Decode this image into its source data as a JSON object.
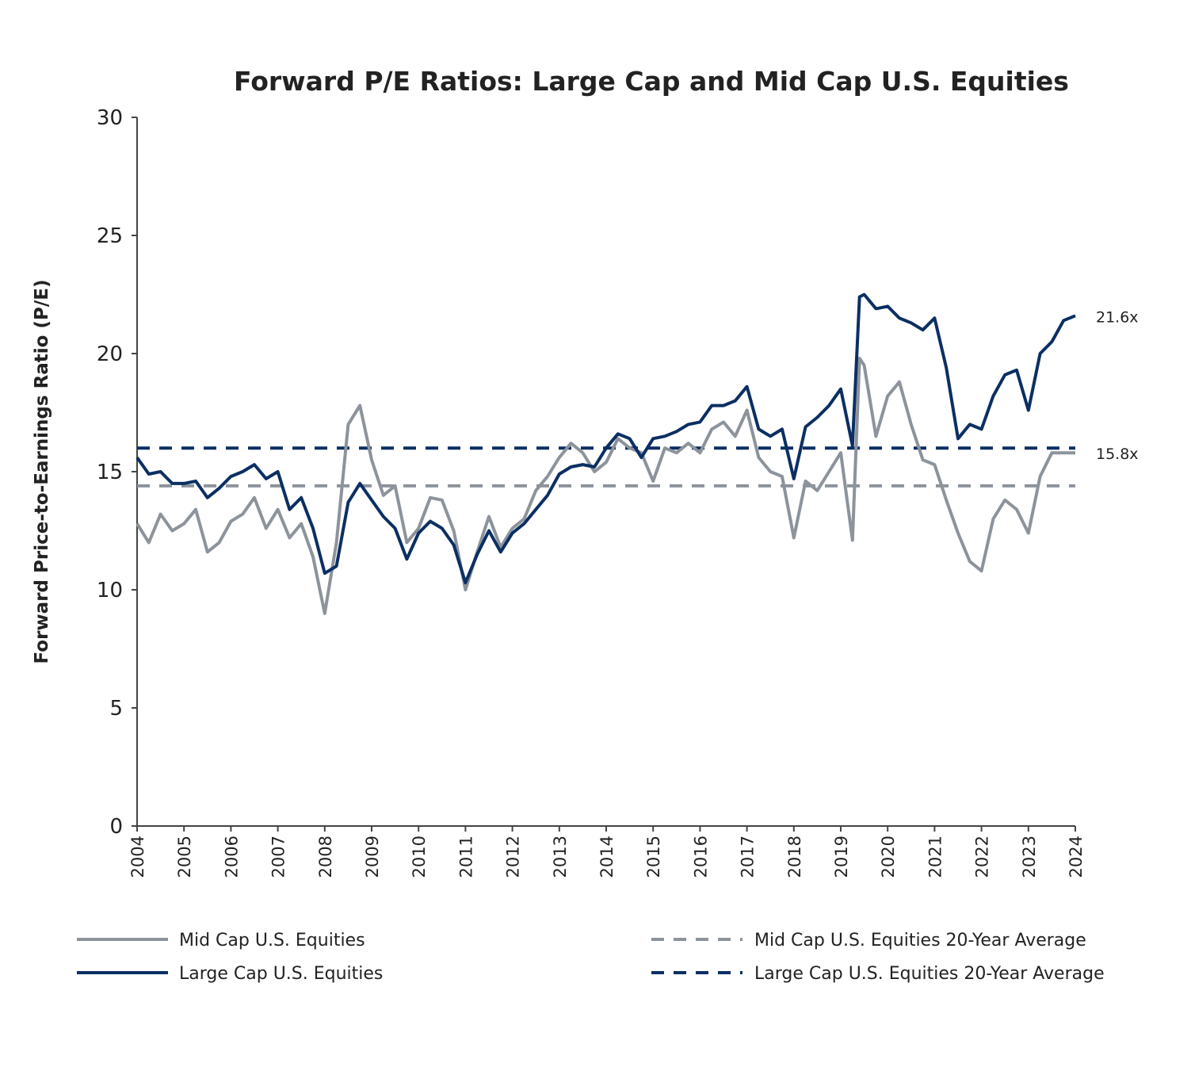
{
  "chart_data": {
    "type": "line",
    "title": "Forward P/E Ratios: Large Cap and Mid Cap U.S. Equities",
    "xlabel": "",
    "ylabel": "Forward Price-to-Earnings Ratio (P/E)",
    "ylim": [
      0,
      30
    ],
    "xlim": [
      2004,
      2024
    ],
    "yticks": [
      "0",
      "5",
      "10",
      "15",
      "20",
      "25",
      "30"
    ],
    "xticks": [
      "2004",
      "2005",
      "2006",
      "2007",
      "2008",
      "2009",
      "2010",
      "2011",
      "2012",
      "2013",
      "2014",
      "2015",
      "2016",
      "2017",
      "2018",
      "2019",
      "2020",
      "2021",
      "2022",
      "2023",
      "2024"
    ],
    "grid": false,
    "legend_position": "bottom",
    "colors": {
      "large": "#0b2f63",
      "mid": "#8c939b"
    },
    "series": [
      {
        "name": "Mid Cap U.S. Equities",
        "style": "solid",
        "color": "#8c939b",
        "x": [
          2004.0,
          2004.25,
          2004.5,
          2004.75,
          2005.0,
          2005.25,
          2005.5,
          2005.75,
          2006.0,
          2006.25,
          2006.5,
          2006.75,
          2007.0,
          2007.25,
          2007.5,
          2007.75,
          2008.0,
          2008.25,
          2008.5,
          2008.75,
          2009.0,
          2009.25,
          2009.5,
          2009.75,
          2010.0,
          2010.25,
          2010.5,
          2010.75,
          2011.0,
          2011.25,
          2011.5,
          2011.75,
          2012.0,
          2012.25,
          2012.5,
          2012.75,
          2013.0,
          2013.25,
          2013.5,
          2013.75,
          2014.0,
          2014.25,
          2014.5,
          2014.75,
          2015.0,
          2015.25,
          2015.5,
          2015.75,
          2016.0,
          2016.25,
          2016.5,
          2016.75,
          2017.0,
          2017.25,
          2017.5,
          2017.75,
          2018.0,
          2018.25,
          2018.5,
          2018.75,
          2019.0,
          2019.25,
          2019.4,
          2019.5,
          2019.75,
          2020.0,
          2020.25,
          2020.5,
          2020.75,
          2021.0,
          2021.25,
          2021.5,
          2021.75,
          2022.0,
          2022.25,
          2022.5,
          2022.75,
          2023.0,
          2023.25,
          2023.5,
          2023.75,
          2024.0
        ],
        "values": [
          12.8,
          12.0,
          13.2,
          12.5,
          12.8,
          13.4,
          11.6,
          12.0,
          12.9,
          13.2,
          13.9,
          12.6,
          13.4,
          12.2,
          12.8,
          11.4,
          9.0,
          12.0,
          17.0,
          17.8,
          15.5,
          14.0,
          14.4,
          12.0,
          12.6,
          13.9,
          13.8,
          12.5,
          10.0,
          11.6,
          13.1,
          11.8,
          12.6,
          13.0,
          14.2,
          14.8,
          15.6,
          16.2,
          15.8,
          15.0,
          15.4,
          16.4,
          16.0,
          15.8,
          14.6,
          16.0,
          15.8,
          16.2,
          15.8,
          16.8,
          17.1,
          16.5,
          17.6,
          15.6,
          15.0,
          14.8,
          12.2,
          14.6,
          14.2,
          15.0,
          15.8,
          12.1,
          19.8,
          19.5,
          16.5,
          18.2,
          18.8,
          17.0,
          15.5,
          15.3,
          13.8,
          12.4,
          11.2,
          10.8,
          13.0,
          13.8,
          13.4,
          12.4,
          14.8,
          15.8,
          15.8,
          15.8
        ]
      },
      {
        "name": "Large Cap U.S. Equities",
        "style": "solid",
        "color": "#0b2f63",
        "x": [
          2004.0,
          2004.25,
          2004.5,
          2004.75,
          2005.0,
          2005.25,
          2005.5,
          2005.75,
          2006.0,
          2006.25,
          2006.5,
          2006.75,
          2007.0,
          2007.25,
          2007.5,
          2007.75,
          2008.0,
          2008.25,
          2008.5,
          2008.75,
          2009.0,
          2009.25,
          2009.5,
          2009.75,
          2010.0,
          2010.25,
          2010.5,
          2010.75,
          2011.0,
          2011.25,
          2011.5,
          2011.75,
          2012.0,
          2012.25,
          2012.5,
          2012.75,
          2013.0,
          2013.25,
          2013.5,
          2013.75,
          2014.0,
          2014.25,
          2014.5,
          2014.75,
          2015.0,
          2015.25,
          2015.5,
          2015.75,
          2016.0,
          2016.25,
          2016.5,
          2016.75,
          2017.0,
          2017.25,
          2017.5,
          2017.75,
          2018.0,
          2018.25,
          2018.5,
          2018.75,
          2019.0,
          2019.25,
          2019.4,
          2019.5,
          2019.75,
          2020.0,
          2020.25,
          2020.5,
          2020.75,
          2021.0,
          2021.25,
          2021.5,
          2021.75,
          2022.0,
          2022.25,
          2022.5,
          2022.75,
          2023.0,
          2023.25,
          2023.5,
          2023.75,
          2024.0
        ],
        "values": [
          15.6,
          14.9,
          15.0,
          14.5,
          14.5,
          14.6,
          13.9,
          14.3,
          14.8,
          15.0,
          15.3,
          14.7,
          15.0,
          13.4,
          13.9,
          12.6,
          10.7,
          11.0,
          13.7,
          14.5,
          13.8,
          13.1,
          12.6,
          11.3,
          12.4,
          12.9,
          12.6,
          11.9,
          10.3,
          11.5,
          12.5,
          11.6,
          12.4,
          12.8,
          13.4,
          14.0,
          14.9,
          15.2,
          15.3,
          15.2,
          16.0,
          16.6,
          16.4,
          15.6,
          16.4,
          16.5,
          16.7,
          17.0,
          17.1,
          17.8,
          17.8,
          18.0,
          18.6,
          16.8,
          16.5,
          16.8,
          14.7,
          16.9,
          17.3,
          17.8,
          18.5,
          16.1,
          22.4,
          22.5,
          21.9,
          22.0,
          21.5,
          21.3,
          21.0,
          21.5,
          19.4,
          16.4,
          17.0,
          16.8,
          18.2,
          19.1,
          19.3,
          17.6,
          20.0,
          20.5,
          21.4,
          21.6
        ]
      },
      {
        "name": "Mid Cap U.S. Equities 20-Year Average",
        "style": "dashed",
        "color": "#8c939b",
        "x": [
          2004.0,
          2024.0
        ],
        "values": [
          14.4,
          14.4
        ]
      },
      {
        "name": "Large Cap U.S. Equities 20-Year Average",
        "style": "dashed",
        "color": "#0b2f63",
        "x": [
          2004.0,
          2024.0
        ],
        "values": [
          16.0,
          16.0
        ]
      }
    ],
    "annotations": [
      {
        "text": "21.6x",
        "series": "Large Cap U.S. Equities",
        "value": 21.6
      },
      {
        "text": "15.8x",
        "series": "Mid Cap U.S. Equities",
        "value": 15.8
      }
    ]
  }
}
